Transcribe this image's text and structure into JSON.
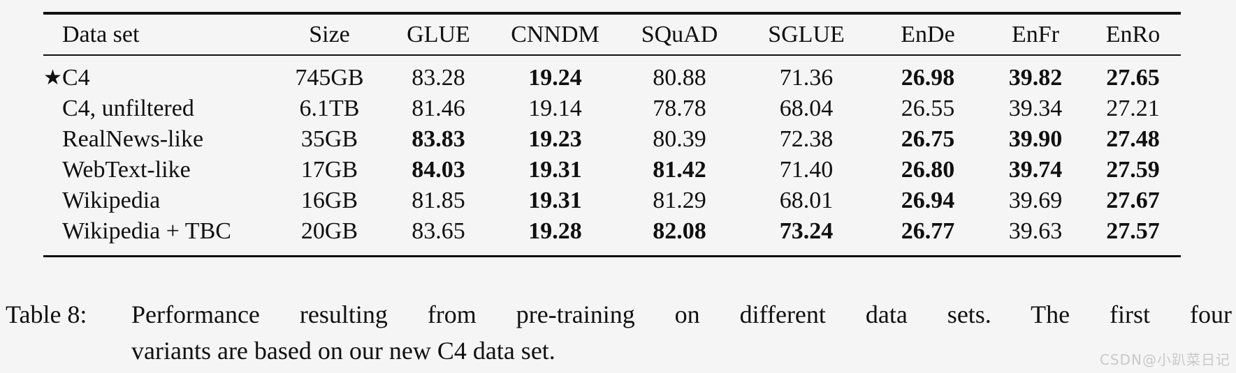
{
  "styles": {
    "page_background": "#f5f5f5",
    "text_color": "#101010",
    "rule_color": "#101010",
    "watermark_color": "#c9c9c9"
  },
  "table": {
    "columns": [
      "Data set",
      "Size",
      "GLUE",
      "CNNDM",
      "SQuAD",
      "SGLUE",
      "EnDe",
      "EnFr",
      "EnRo"
    ],
    "star_symbol": "★",
    "rows": [
      {
        "star": "★",
        "dataset": "C4",
        "cells": [
          {
            "t": "745GB",
            "b": false
          },
          {
            "t": "83.28",
            "b": false
          },
          {
            "t": "19.24",
            "b": true
          },
          {
            "t": "80.88",
            "b": false
          },
          {
            "t": "71.36",
            "b": false
          },
          {
            "t": "26.98",
            "b": true
          },
          {
            "t": "39.82",
            "b": true
          },
          {
            "t": "27.65",
            "b": true
          }
        ]
      },
      {
        "star": "",
        "dataset": "C4, unfiltered",
        "cells": [
          {
            "t": "6.1TB",
            "b": false
          },
          {
            "t": "81.46",
            "b": false
          },
          {
            "t": "19.14",
            "b": false
          },
          {
            "t": "78.78",
            "b": false
          },
          {
            "t": "68.04",
            "b": false
          },
          {
            "t": "26.55",
            "b": false
          },
          {
            "t": "39.34",
            "b": false
          },
          {
            "t": "27.21",
            "b": false
          }
        ]
      },
      {
        "star": "",
        "dataset": "RealNews-like",
        "cells": [
          {
            "t": "35GB",
            "b": false
          },
          {
            "t": "83.83",
            "b": true
          },
          {
            "t": "19.23",
            "b": true
          },
          {
            "t": "80.39",
            "b": false
          },
          {
            "t": "72.38",
            "b": false
          },
          {
            "t": "26.75",
            "b": true
          },
          {
            "t": "39.90",
            "b": true
          },
          {
            "t": "27.48",
            "b": true
          }
        ]
      },
      {
        "star": "",
        "dataset": "WebText-like",
        "cells": [
          {
            "t": "17GB",
            "b": false
          },
          {
            "t": "84.03",
            "b": true
          },
          {
            "t": "19.31",
            "b": true
          },
          {
            "t": "81.42",
            "b": true
          },
          {
            "t": "71.40",
            "b": false
          },
          {
            "t": "26.80",
            "b": true
          },
          {
            "t": "39.74",
            "b": true
          },
          {
            "t": "27.59",
            "b": true
          }
        ]
      },
      {
        "star": "",
        "dataset": "Wikipedia",
        "cells": [
          {
            "t": "16GB",
            "b": false
          },
          {
            "t": "81.85",
            "b": false
          },
          {
            "t": "19.31",
            "b": true
          },
          {
            "t": "81.29",
            "b": false
          },
          {
            "t": "68.01",
            "b": false
          },
          {
            "t": "26.94",
            "b": true
          },
          {
            "t": "39.69",
            "b": false
          },
          {
            "t": "27.67",
            "b": true
          }
        ]
      },
      {
        "star": "",
        "dataset": "Wikipedia + TBC",
        "cells": [
          {
            "t": "20GB",
            "b": false
          },
          {
            "t": "83.65",
            "b": false
          },
          {
            "t": "19.28",
            "b": true
          },
          {
            "t": "82.08",
            "b": true
          },
          {
            "t": "73.24",
            "b": true
          },
          {
            "t": "26.77",
            "b": true
          },
          {
            "t": "39.63",
            "b": false
          },
          {
            "t": "27.57",
            "b": true
          }
        ]
      }
    ]
  },
  "caption": {
    "label": "Table 8:",
    "line1": "Performance resulting from pre-training on different data sets.  The first four",
    "line2": "variants are based on our new C4 data set."
  },
  "watermark": "CSDN@小趴菜日记"
}
